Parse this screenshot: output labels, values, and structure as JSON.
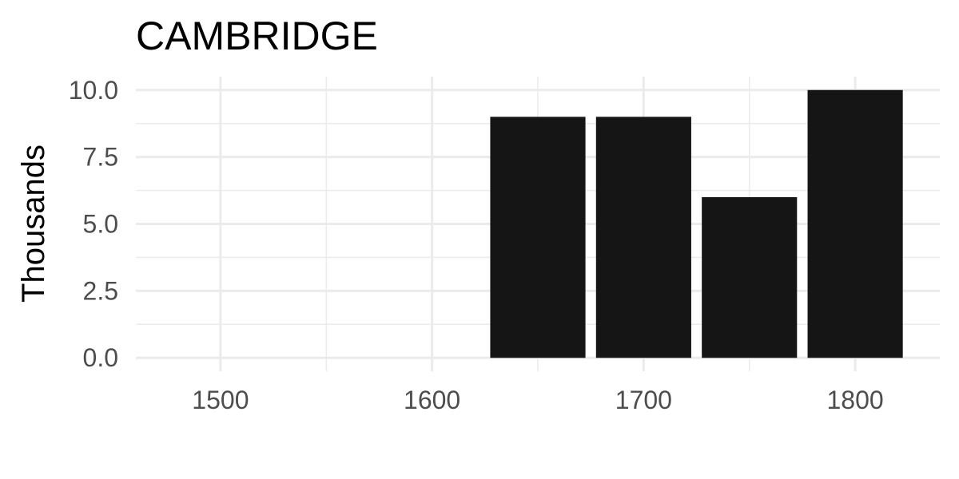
{
  "chart_data": {
    "type": "bar",
    "title": "CAMBRIDGE",
    "xlabel": "",
    "ylabel": "Thousands",
    "x": [
      1650,
      1700,
      1750,
      1800
    ],
    "values": [
      9,
      9,
      6,
      10
    ],
    "xlim": [
      1460,
      1840
    ],
    "ylim": [
      -0.5,
      10.5
    ],
    "x_ticks": [
      1500,
      1600,
      1700,
      1800
    ],
    "x_tick_labels": [
      "1500",
      "1600",
      "1700",
      "1800"
    ],
    "x_minor_ticks": [
      1550,
      1650,
      1750
    ],
    "y_ticks": [
      0,
      2.5,
      5,
      7.5,
      10
    ],
    "y_tick_labels": [
      "0.0",
      "2.5",
      "5.0",
      "7.5",
      "10.0"
    ],
    "y_minor_ticks": [
      1.25,
      3.75,
      6.25,
      8.75
    ],
    "bar_width": 45,
    "bar_color": "#151515",
    "grid": true,
    "legend": "none"
  }
}
